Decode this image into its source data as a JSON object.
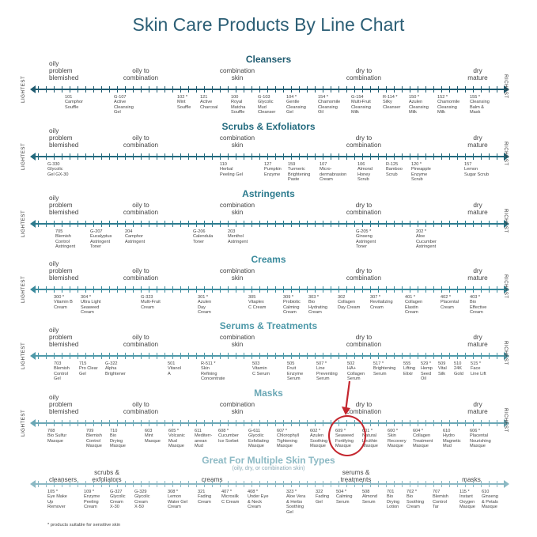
{
  "title": "Skin Care Products By Line Chart",
  "colors": {
    "cleansers": "#1f5b70",
    "scrubs": "#226a7e",
    "astringents": "#2c7b8e",
    "creams": "#3a8a9c",
    "serums": "#4e99a9",
    "masks": "#6aa7b5",
    "multi": "#8cb9c4",
    "highlight": "#c4262e"
  },
  "side_labels": {
    "left": "LIGHTEST",
    "right": "RICHEST"
  },
  "sections": [
    {
      "key": "cleansers",
      "title": "Cleansers",
      "categories": [
        {
          "text": "oily\nproblem\nblemished",
          "pos": "left"
        },
        {
          "text": "oily to\ncombination",
          "pos": "c1"
        },
        {
          "text": "combination\nskin",
          "pos": "c2"
        },
        {
          "text": "dry to\ncombination",
          "pos": "c3"
        },
        {
          "text": "dry\nmature",
          "pos": "right"
        }
      ],
      "products": [
        "101\nCamphor\nSouffle",
        "G-107\nActive\nCleansing\nGel",
        "102 *\nMint\nSouffle",
        "121\nActive\nCharcoal",
        "100\nRoyal\nMatcha\nSouffle",
        "G-103\nGlycolic\nMud\nCleanser",
        "104 *\nGentle\nCleansing\nGel",
        "154 *\nChamomile\nCleansing\nOil",
        "G-154\nMulti-Fruit\nCleansing\nMilk",
        "R-114 *\nSilky\nCleanser",
        "150 *\nAzulen\nCleansing\nMilk",
        "152 *\nChamomile\nCleansing\nMilk",
        "155 *\nCleansing\nBalm &\nMask"
      ]
    },
    {
      "key": "scrubs",
      "title": "Scrubs & Exfoliators",
      "categories": [
        {
          "text": "oily\nproblem\nblemished",
          "pos": "left"
        },
        {
          "text": "oily to\ncombination",
          "pos": "c1"
        },
        {
          "text": "combination\nskin",
          "pos": "c2"
        },
        {
          "text": "dry to\ncombination",
          "pos": "c3"
        },
        {
          "text": "dry\nmature",
          "pos": "right"
        }
      ],
      "products": [
        "G-330\nGlycolic\nGel GX-30",
        "110\nHerbal\nPeeling Gel",
        "127\nPumpkin\nEnzyme",
        "159\nTurmeric\nBrightening\nPaste",
        "107\nMicro-\ndermabrasion\nCream",
        "106\nAlmond\nHoney\nScrub",
        "R-125\nBamboo\nScrub",
        "120 *\nPineapple\nEnzyme\nScrub",
        "157\nLemon\nSugar Scrub"
      ]
    },
    {
      "key": "astringents",
      "title": "Astringents",
      "categories": [
        {
          "text": "oily\nproblem\nblemished",
          "pos": "left"
        },
        {
          "text": "oily to\ncombination",
          "pos": "c1"
        },
        {
          "text": "combination\nskin",
          "pos": "c2"
        },
        {
          "text": "dry to\ncombination",
          "pos": "c3"
        },
        {
          "text": "dry\nmature",
          "pos": "right"
        }
      ],
      "products": [
        "705\nBlemish\nControl\nAstringent",
        "G-207\nEucalyptus\nAstringent\nToner",
        "204\nCamphor\nAstringent",
        "G-206\nCalendula\nToner",
        "203\nMenthol\nAstringent",
        "G-205 *\nGinseng\nAstringent\nToner",
        "202 *\nAloe\nCucumber\nAstringent"
      ]
    },
    {
      "key": "creams",
      "title": "Creams",
      "categories": [
        {
          "text": "oily\nproblem\nblemished",
          "pos": "left"
        },
        {
          "text": "oily to\ncombination",
          "pos": "c1"
        },
        {
          "text": "combination\nskin",
          "pos": "c2"
        },
        {
          "text": "dry to\ncombination",
          "pos": "c3"
        },
        {
          "text": "dry\nmature",
          "pos": "right"
        }
      ],
      "products": [
        "300 *\nVitamin B\nCream",
        "304 *\nUltra Light\nSeaweed\nCream",
        "G-323\nMulti-Fruit\nCream",
        "301 *\nAzulen\nDay\nCream",
        "305\nVitaplex\nC Cream",
        "309 *\nProbiotic\nCalming\nCream",
        "303 *\nBio\nHydrating\nCream",
        "302\nCollagen\nDay Cream",
        "307 *\nRevitalizing\nCream",
        "401 *\nCollagen\nElastin\nCream",
        "402 *\nPlacental\nCream",
        "403 *\nBio\nEffective\nCream"
      ]
    },
    {
      "key": "serums",
      "title": "Serums & Treatments",
      "categories": [
        {
          "text": "oily\nproblem\nblemished",
          "pos": "left"
        },
        {
          "text": "oily to\ncombination",
          "pos": "c1"
        },
        {
          "text": "combination\nskin",
          "pos": "c2"
        },
        {
          "text": "dry to\ncombination",
          "pos": "c3"
        },
        {
          "text": "dry\nmature",
          "pos": "right"
        }
      ],
      "products": [
        "703\nBlemish\nControl\nGel",
        "715\nPro Clear\nGel",
        "G-322\nAlpha\nBrightener",
        "501\nVitanol\nA",
        "R-511 *\nSkin\nRefining\nConcentrate",
        "503\nVitamin\nC Serum",
        "505\nFruit\nEnzyme\nSerum",
        "507 *\nLine\nPreventing\nSerum",
        "502\nHA+\nCollagen\nSerum",
        "517 *\nBrightening\nSerum",
        "555\nLifting\nElixir",
        "529 *\nHemp\nSeed\nOil",
        "509\nVital\nSilk",
        "510\n24K\nGold",
        "515 *\nFace\nLine Lift"
      ]
    },
    {
      "key": "masks",
      "title": "Masks",
      "categories": [
        {
          "text": "oily\nproblem\nblemished",
          "pos": "left"
        },
        {
          "text": "oily to\ncombination",
          "pos": "c1"
        },
        {
          "text": "combination\nskin",
          "pos": "c2"
        },
        {
          "text": "dry to\ncombination",
          "pos": "c3"
        },
        {
          "text": "dry\nmature",
          "pos": "right"
        }
      ],
      "products": [
        "708\nBio Sulfur\nMasque",
        "709\nBlemish\nControl\nMasque",
        "710\nBio\nDrying\nMasque",
        "603\nMint\nMasque",
        "605 *\nVolcanic\nMud\nMasque",
        "611\nMediterr-\nanean\nMud",
        "608 *\nCucumber\nIce Sorbet",
        "G-611\nGlycolic\nExfoliating\nMasque",
        "607 *\nChlorophyll\nTightening\nMasque",
        "602 *\nAzulen\nSoothing\nMasque",
        "609 *\nSeaweed\nFortifying\nMasque",
        "601 *\nNatural\nLecithin\nMasque",
        "600 *\nSkin\nRecovery\nMasque",
        "604 *\nCollagen\nTreatment\nMasque",
        "610\nHydro\nMagnetic\nMud",
        "606 *\nPlacental\nNourishing\nMasque"
      ]
    },
    {
      "key": "multi",
      "title": "Great For Multiple Skin Types",
      "subtitle": "(oily, dry, or combination skin)",
      "categories": [
        {
          "text": "cleansers",
          "pos": "m1"
        },
        {
          "text": "scrubs &\nexfoliators",
          "pos": "m2"
        },
        {
          "text": "creams",
          "pos": "m3"
        },
        {
          "text": "serums &\ntreatments",
          "pos": "m4"
        },
        {
          "text": "masks",
          "pos": "m5"
        }
      ],
      "products": [
        "105 *\nEye Make\nUp\nRemover",
        "109 *\nEnzyme\nPeeling\nCream",
        "G-327\nGlycolic\nCream\nX-30",
        "G-329\nGlycolic\nCream\nX-50",
        "308 *\nLemon\nWater Gel\nCream",
        "321\nFading\nCream",
        "407 *\nMicrosilk\nC Cream",
        "408 *\nUnder Eye\n& Neck\nCream",
        "323 *\nAloe Vera\n& Herbs\nSoothing\nGel",
        "322\nFading\nGel",
        "504 *\nCalming\nSerum",
        "508\nAlmond\nSerum",
        "701\nBio\nDrying\nLotion",
        "702 *\nBio\nSoothing\nCream",
        "707\nBlemish\nControl\nTar",
        "115 *\nInstant\nOxygen\nMasque",
        "610\nGinseng\n& Petals\nMasque"
      ]
    }
  ],
  "footnote": "* products suitable for sensitive skin"
}
